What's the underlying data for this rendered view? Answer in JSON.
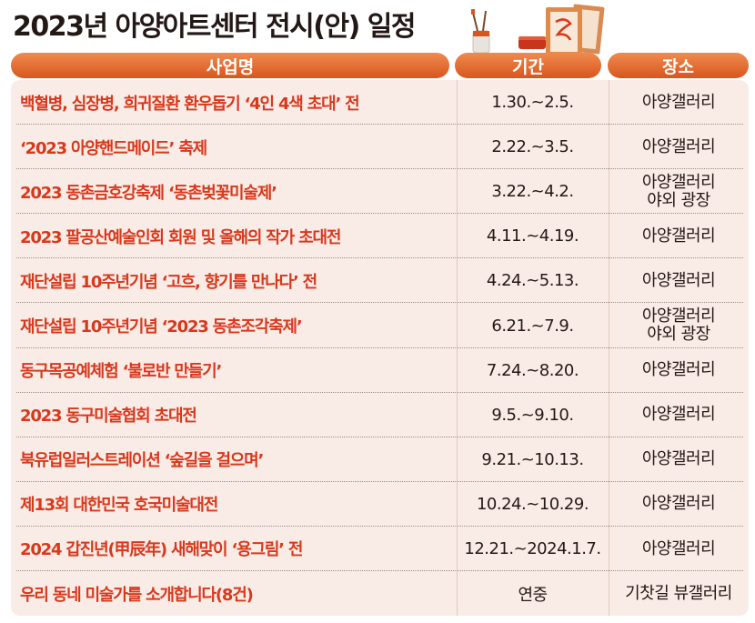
{
  "title": "2023년 아양아트센터 전시(안) 일정",
  "headers": {
    "name": "사업명",
    "period": "기간",
    "place": "장소"
  },
  "colors": {
    "accent": "#d8381c",
    "header": "#e06a32",
    "row_bg": "#f9ece6"
  },
  "decoration_icon": "art-supplies-illustration",
  "rows": [
    {
      "name": "백혈병, 심장병, 희귀질환 환우돕기 ‘4인 4색 초대’ 전",
      "period": "1.30.~2.5.",
      "place": [
        "아양갤러리"
      ]
    },
    {
      "name": "‘2023 아양핸드메이드’ 축제",
      "period": "2.22.~3.5.",
      "place": [
        "아양갤러리"
      ]
    },
    {
      "name": "2023 동촌금호강축제 ‘동촌벚꽃미술제’",
      "period": "3.22.~4.2.",
      "place": [
        "아양갤러리",
        "야외 광장"
      ]
    },
    {
      "name": "2023 팔공산예술인회 회원 및 올해의 작가 초대전",
      "period": "4.11.~4.19.",
      "place": [
        "아양갤러리"
      ]
    },
    {
      "name": "재단설립 10주년기념 ‘고흐, 향기를 만나다’ 전",
      "period": "4.24.~5.13.",
      "place": [
        "아양갤러리"
      ]
    },
    {
      "name": "재단설립 10주년기념 ‘2023 동촌조각축제’",
      "period": "6.21.~7.9.",
      "place": [
        "아양갤러리",
        "야외 광장"
      ]
    },
    {
      "name": "동구목공예체험 ‘불로반 만들기’",
      "period": "7.24.~8.20.",
      "place": [
        "아양갤러리"
      ]
    },
    {
      "name": "2023 동구미술협회 초대전",
      "period": "9.5.~9.10.",
      "place": [
        "아양갤러리"
      ]
    },
    {
      "name": "북유럽일러스트레이션 ‘숲길을 걸으며’",
      "period": "9.21.~10.13.",
      "place": [
        "아양갤러리"
      ]
    },
    {
      "name": "제13회 대한민국 호국미술대전",
      "period": "10.24.~10.29.",
      "place": [
        "아양갤러리"
      ]
    },
    {
      "name": "2024 갑진년(甲辰年) 새해맞이 ‘용그림’ 전",
      "period": "12.21.~2024.1.7.",
      "place": [
        "아양갤러리"
      ]
    },
    {
      "name": "우리 동네 미술가를 소개합니다(8건)",
      "period": "연중",
      "place": [
        "기찻길 뷰갤러리"
      ]
    }
  ]
}
